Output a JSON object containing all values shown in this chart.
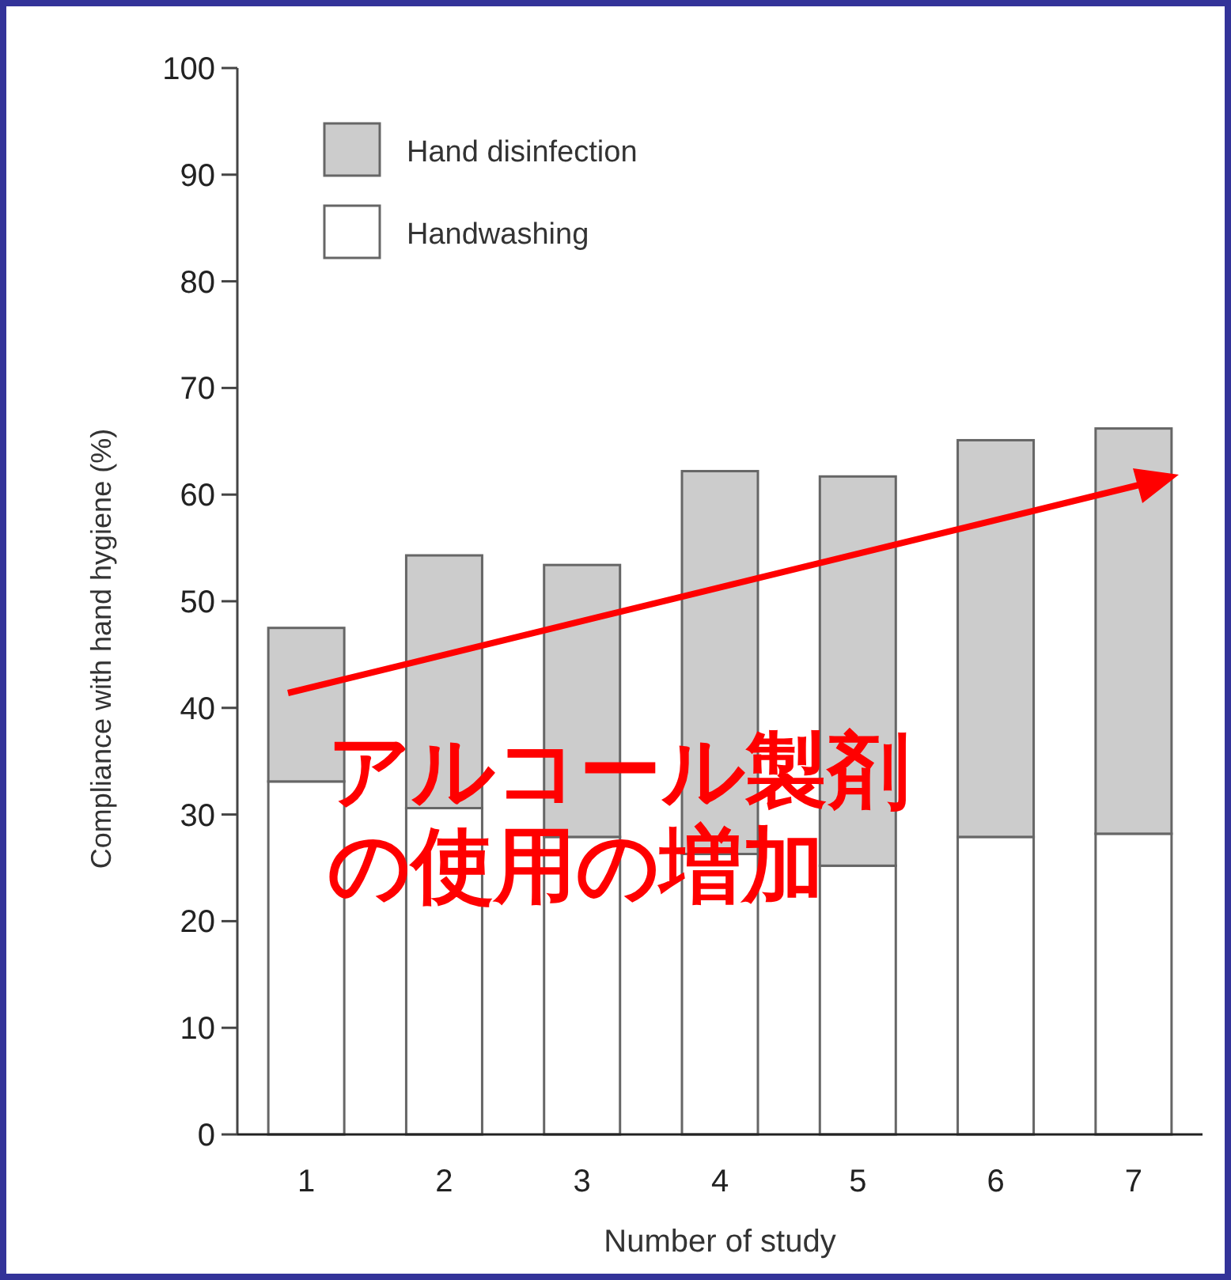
{
  "chart_data": {
    "type": "bar",
    "stacked": true,
    "xlabel": "Number of study",
    "ylabel": "Compliance with hand hygiene (%)",
    "categories": [
      "1",
      "2",
      "3",
      "4",
      "5",
      "6",
      "7"
    ],
    "series": [
      {
        "name": "Handwashing",
        "color": "#ffffff",
        "values": [
          33.1,
          30.6,
          27.9,
          26.3,
          25.2,
          27.9,
          28.2
        ]
      },
      {
        "name": "Hand disinfection",
        "color": "#cccccc",
        "values": [
          14.4,
          23.7,
          25.5,
          35.9,
          36.5,
          37.2,
          38.0
        ]
      }
    ],
    "ylim": [
      0,
      100
    ],
    "yticks": [
      0,
      10,
      20,
      30,
      40,
      50,
      60,
      70,
      80,
      90,
      100
    ],
    "grid": false,
    "legend": "top left",
    "annotations": [
      "アルコール製剤の使用の増加"
    ]
  }
}
